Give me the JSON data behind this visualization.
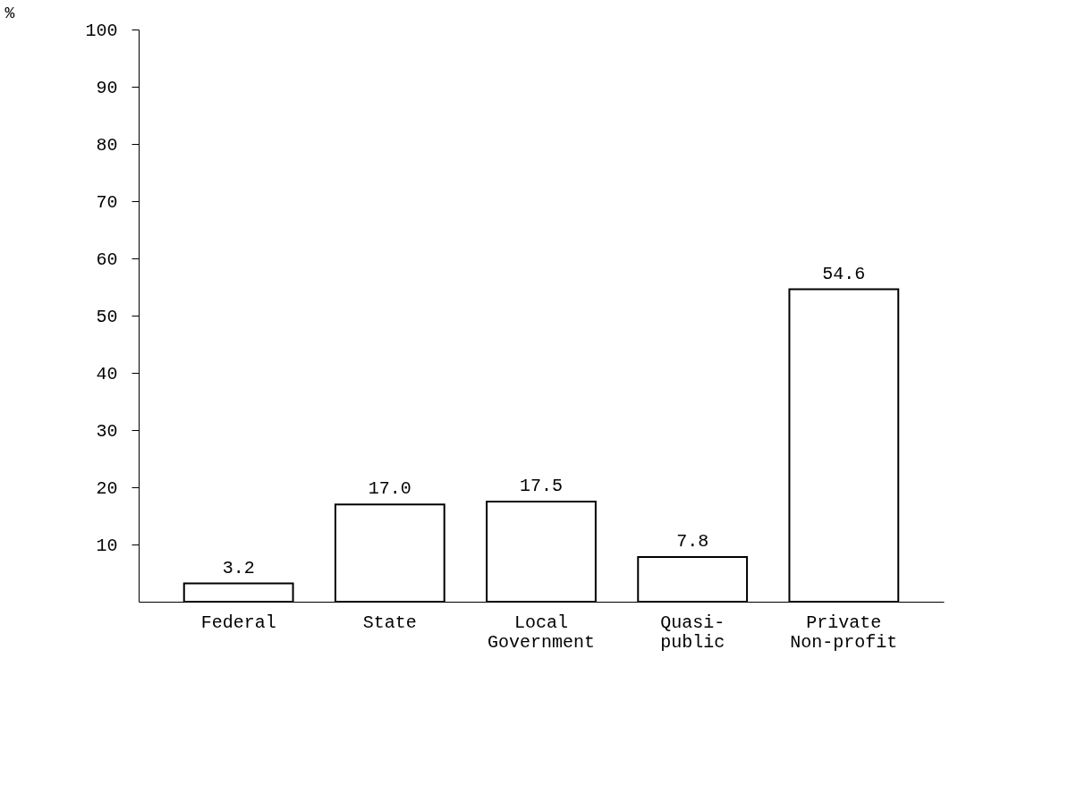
{
  "chart_data": {
    "type": "bar",
    "ylabel": "%",
    "categories": [
      "Federal",
      "State",
      "Local\nGovernment",
      "Quasi-\npublic",
      "Private\nNon-profit"
    ],
    "values": [
      3.2,
      17.0,
      17.5,
      7.8,
      54.6
    ],
    "value_labels": [
      "3.2",
      "17.0",
      "17.5",
      "7.8",
      "54.6"
    ],
    "color": "#ffffff",
    "ylim": [
      0,
      100
    ],
    "yticks": [
      10,
      20,
      30,
      40,
      50,
      60,
      70,
      80,
      90,
      100
    ],
    "grid": false
  }
}
